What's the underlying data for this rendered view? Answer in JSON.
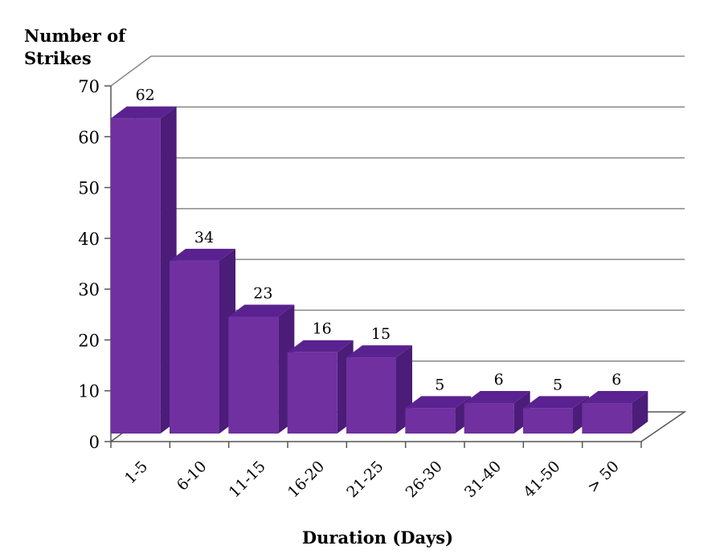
{
  "chart_data": {
    "type": "bar",
    "title": "",
    "ylabel": "Number of Strikes",
    "xlabel": "Duration (Days)",
    "categories": [
      "1-5",
      "6-10",
      "11-15",
      "16-20",
      "21-25",
      "26-30",
      "31-40",
      "41-50",
      "> 50"
    ],
    "values": [
      62,
      34,
      23,
      16,
      15,
      5,
      6,
      5,
      6
    ],
    "ylim": [
      0,
      70
    ],
    "yticks": [
      0,
      10,
      20,
      30,
      40,
      50,
      60,
      70
    ],
    "grid": true,
    "legend": "none",
    "style": "3d-column"
  },
  "colors": {
    "bar_front": "#7030a0",
    "bar_top": "#5a2290",
    "bar_side": "#4b1c78",
    "grid": "#888888",
    "axis": "#555555"
  }
}
